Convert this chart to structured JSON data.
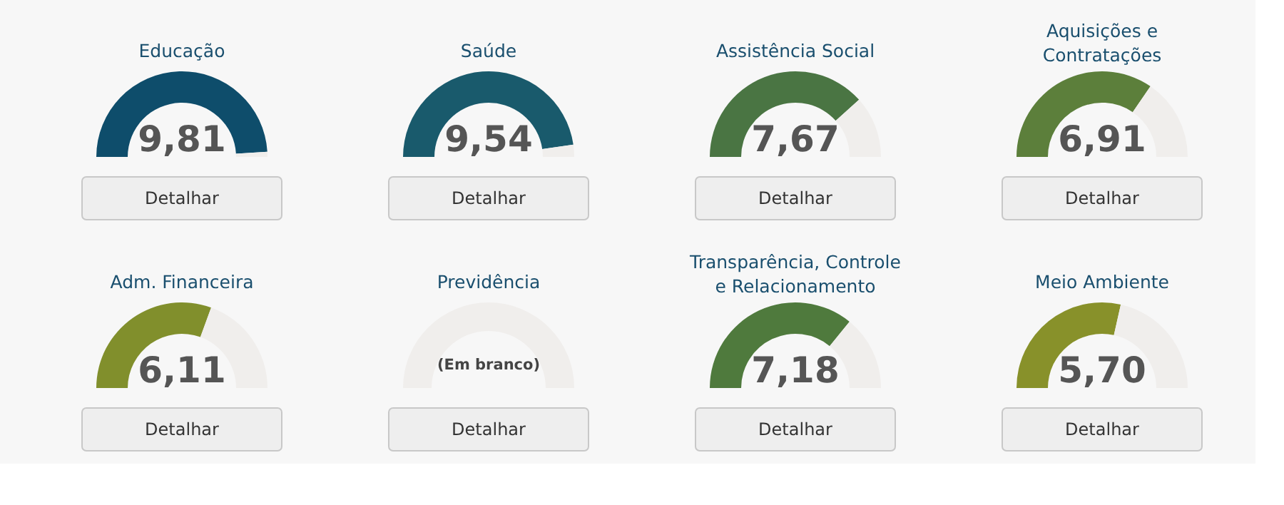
{
  "chart_data": [
    {
      "type": "donut",
      "title": "Educação",
      "categories": [
        null,
        null
      ],
      "values": [
        9.81,
        0.19
      ],
      "colors": [
        "#0e4d6b",
        "#f0eeec"
      ],
      "value_labels": [
        "9,81",
        null
      ],
      "annotations": [
        "Detalhar"
      ]
    },
    {
      "type": "donut",
      "title": "Saúde",
      "categories": [
        null,
        null
      ],
      "values": [
        9.54,
        0.46
      ],
      "colors": [
        "#195a6c",
        "#f0eeec"
      ],
      "value_labels": [
        "9,54",
        null
      ],
      "annotations": [
        "Detalhar"
      ]
    },
    {
      "type": "donut",
      "title": "Assistência Social",
      "categories": [
        null,
        null
      ],
      "values": [
        7.67,
        2.33
      ],
      "colors": [
        "#4a7543",
        "#f0eeec"
      ],
      "value_labels": [
        "7,67",
        null
      ],
      "annotations": [
        "Detalhar"
      ]
    },
    {
      "type": "donut",
      "title": "Aquisições e Contratações",
      "categories": [
        null,
        null
      ],
      "values": [
        6.91,
        3.09
      ],
      "colors": [
        "#5c7f3b",
        "#f0eeec"
      ],
      "value_labels": [
        "6,91",
        null
      ],
      "annotations": [
        "Detalhar"
      ]
    },
    {
      "type": "donut",
      "title": "Adm. Financeira",
      "categories": [
        null,
        null
      ],
      "values": [
        6.11,
        3.89
      ],
      "colors": [
        "#818f2c",
        "#f0eeec"
      ],
      "value_labels": [
        "6,11",
        null
      ],
      "annotations": [
        "Detalhar"
      ]
    },
    {
      "type": "pie",
      "title": "Previdência",
      "categories": [
        null
      ],
      "values": [
        100
      ],
      "colors": [
        "#f0eeec"
      ],
      "annotations": [
        "(Em branco)",
        "Detalhar"
      ]
    },
    {
      "type": "donut",
      "title": "Transparência, Controle e Relacionamento",
      "categories": [
        null,
        null
      ],
      "values": [
        7.18,
        2.82
      ],
      "colors": [
        "#4f7a3d",
        "#f0eeec"
      ],
      "value_labels": [
        "7,18",
        null
      ],
      "annotations": [
        "Detalhar"
      ]
    },
    {
      "type": "donut",
      "title": "Meio Ambiente",
      "categories": [
        null,
        null
      ],
      "values": [
        5.7,
        4.3
      ],
      "colors": [
        "#88912a",
        "#f0eeec"
      ],
      "value_labels": [
        "5,70",
        null
      ],
      "annotations": [
        "Detalhar"
      ]
    }
  ]
}
